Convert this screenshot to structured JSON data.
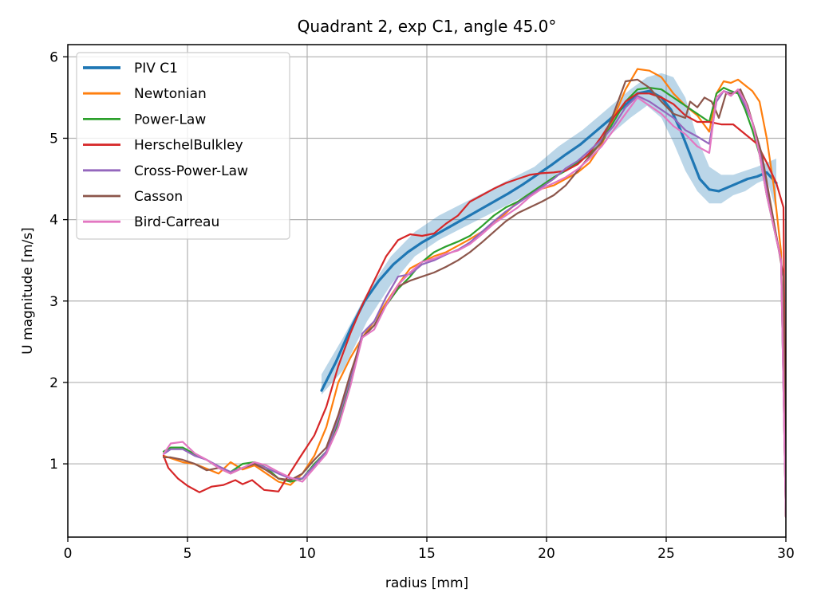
{
  "chart_data": {
    "type": "line",
    "title": "Quadrant 2, exp C1, angle 45.0°",
    "xlabel": "radius [mm]",
    "ylabel": "U magnitude [m/s]",
    "xlim": [
      0,
      30
    ],
    "ylim": [
      0.1,
      6.15
    ],
    "xticks": [
      0,
      5,
      10,
      15,
      20,
      25,
      30
    ],
    "yticks": [
      1,
      2,
      3,
      4,
      5,
      6
    ],
    "grid": true,
    "legend_position": "top-left",
    "band": {
      "name": "PIV C1 uncertainty",
      "color": "#1f77b4",
      "x": [
        10.6,
        11.5,
        12.5,
        13.5,
        14.5,
        15.5,
        16.5,
        17.5,
        18.5,
        19.5,
        20.5,
        21.5,
        22.5,
        23.5,
        24.2,
        24.8,
        25.3,
        25.8,
        26.3,
        26.8,
        27.3,
        27.8,
        28.3,
        28.8,
        29.2,
        29.6
      ],
      "lower": [
        1.85,
        2.15,
        2.75,
        3.2,
        3.55,
        3.75,
        3.9,
        4.05,
        4.2,
        4.35,
        4.55,
        4.75,
        5.0,
        5.25,
        5.4,
        5.25,
        4.95,
        4.6,
        4.35,
        4.2,
        4.2,
        4.3,
        4.35,
        4.45,
        4.5,
        4.1
      ],
      "upper": [
        2.1,
        2.55,
        3.1,
        3.55,
        3.85,
        4.05,
        4.2,
        4.35,
        4.5,
        4.65,
        4.9,
        5.1,
        5.35,
        5.6,
        5.75,
        5.8,
        5.75,
        5.5,
        5.0,
        4.65,
        4.55,
        4.55,
        4.6,
        4.65,
        4.7,
        4.75
      ]
    },
    "series": [
      {
        "name": "PIV C1",
        "color": "#1f77b4",
        "width": 3.2,
        "x": [
          10.6,
          11.2,
          11.8,
          12.4,
          13.0,
          13.6,
          14.2,
          14.8,
          15.4,
          16.0,
          16.6,
          17.2,
          17.8,
          18.4,
          19.0,
          19.6,
          20.2,
          20.8,
          21.4,
          22.0,
          22.6,
          23.2,
          23.8,
          24.3,
          24.8,
          25.2,
          25.6,
          26.0,
          26.4,
          26.8,
          27.2,
          27.6,
          28.0,
          28.4,
          28.8,
          29.2,
          29.6
        ],
        "y": [
          1.9,
          2.25,
          2.65,
          3.0,
          3.25,
          3.45,
          3.6,
          3.72,
          3.82,
          3.92,
          4.02,
          4.12,
          4.22,
          4.32,
          4.43,
          4.55,
          4.67,
          4.8,
          4.92,
          5.07,
          5.22,
          5.38,
          5.55,
          5.58,
          5.5,
          5.35,
          5.1,
          4.8,
          4.5,
          4.37,
          4.35,
          4.4,
          4.45,
          4.5,
          4.53,
          4.58,
          4.45
        ]
      },
      {
        "name": "Newtonian",
        "color": "#ff7f0e",
        "width": 2.2,
        "x": [
          4.0,
          4.3,
          4.8,
          5.3,
          5.8,
          6.3,
          6.8,
          7.3,
          7.8,
          8.3,
          8.8,
          9.3,
          9.8,
          10.3,
          10.8,
          11.3,
          11.8,
          12.3,
          12.8,
          13.3,
          13.8,
          14.3,
          14.8,
          15.3,
          15.8,
          16.3,
          16.8,
          17.3,
          17.8,
          18.3,
          18.8,
          19.3,
          19.8,
          20.3,
          20.8,
          21.3,
          21.8,
          22.3,
          22.8,
          23.3,
          23.8,
          24.3,
          24.8,
          25.3,
          25.8,
          26.3,
          26.8,
          27.1,
          27.4,
          27.7,
          28.0,
          28.3,
          28.6,
          28.9,
          29.2,
          29.5,
          29.8,
          30.0
        ],
        "y": [
          1.1,
          1.07,
          1.02,
          1.0,
          0.94,
          0.88,
          1.02,
          0.93,
          0.98,
          0.88,
          0.78,
          0.74,
          0.88,
          1.1,
          1.45,
          2.0,
          2.3,
          2.55,
          2.75,
          2.98,
          3.2,
          3.4,
          3.48,
          3.55,
          3.6,
          3.68,
          3.76,
          3.85,
          3.95,
          4.08,
          4.22,
          4.32,
          4.38,
          4.42,
          4.5,
          4.58,
          4.7,
          4.92,
          5.25,
          5.6,
          5.85,
          5.83,
          5.75,
          5.55,
          5.4,
          5.28,
          5.08,
          5.55,
          5.7,
          5.68,
          5.72,
          5.65,
          5.58,
          5.45,
          5.0,
          4.4,
          3.6,
          0.35
        ]
      },
      {
        "name": "Power-Law",
        "color": "#2ca02c",
        "width": 2.2,
        "x": [
          4.0,
          4.3,
          4.8,
          5.3,
          5.8,
          6.3,
          6.8,
          7.3,
          7.8,
          8.3,
          8.8,
          9.3,
          9.8,
          10.3,
          10.8,
          11.3,
          11.8,
          12.3,
          12.8,
          13.3,
          13.8,
          14.3,
          14.8,
          15.3,
          15.8,
          16.3,
          16.8,
          17.3,
          17.8,
          18.3,
          18.8,
          19.3,
          19.8,
          20.3,
          20.8,
          21.3,
          21.8,
          22.3,
          22.8,
          23.3,
          23.8,
          24.3,
          24.8,
          25.3,
          25.8,
          26.3,
          26.8,
          27.1,
          27.4,
          27.7,
          28.0,
          28.3,
          28.6,
          28.9,
          29.2,
          29.5,
          29.8,
          30.0
        ],
        "y": [
          1.15,
          1.2,
          1.2,
          1.12,
          1.05,
          0.95,
          0.9,
          1.0,
          1.02,
          0.95,
          0.82,
          0.78,
          0.82,
          1.0,
          1.15,
          1.5,
          2.0,
          2.55,
          2.7,
          2.95,
          3.15,
          3.3,
          3.48,
          3.6,
          3.67,
          3.73,
          3.8,
          3.92,
          4.05,
          4.15,
          4.22,
          4.32,
          4.42,
          4.52,
          4.6,
          4.7,
          4.8,
          4.95,
          5.2,
          5.45,
          5.6,
          5.62,
          5.6,
          5.5,
          5.4,
          5.3,
          5.2,
          5.55,
          5.62,
          5.58,
          5.55,
          5.35,
          5.1,
          4.8,
          4.3,
          3.9,
          3.5,
          0.35
        ]
      },
      {
        "name": "HerschelBulkley",
        "color": "#d62728",
        "width": 2.2,
        "x": [
          4.0,
          4.2,
          4.6,
          5.0,
          5.5,
          6.0,
          6.5,
          7.0,
          7.3,
          7.7,
          8.2,
          8.8,
          9.2,
          9.7,
          10.3,
          10.8,
          11.3,
          11.8,
          12.3,
          12.8,
          13.3,
          13.8,
          14.3,
          14.8,
          15.3,
          15.8,
          16.3,
          16.8,
          17.3,
          17.8,
          18.3,
          18.8,
          19.3,
          19.8,
          20.3,
          20.8,
          21.3,
          21.8,
          22.3,
          22.8,
          23.3,
          23.8,
          24.3,
          24.8,
          25.3,
          25.8,
          26.3,
          26.8,
          27.3,
          27.8,
          28.3,
          28.8,
          29.2,
          29.6,
          29.9,
          30.0
        ],
        "y": [
          1.1,
          0.95,
          0.82,
          0.73,
          0.65,
          0.72,
          0.74,
          0.8,
          0.75,
          0.8,
          0.68,
          0.66,
          0.85,
          1.08,
          1.35,
          1.7,
          2.2,
          2.6,
          2.95,
          3.25,
          3.55,
          3.75,
          3.82,
          3.8,
          3.83,
          3.95,
          4.05,
          4.22,
          4.3,
          4.38,
          4.45,
          4.5,
          4.55,
          4.57,
          4.58,
          4.6,
          4.68,
          4.82,
          5.02,
          5.25,
          5.45,
          5.55,
          5.55,
          5.5,
          5.42,
          5.28,
          5.2,
          5.2,
          5.17,
          5.17,
          5.05,
          4.93,
          4.7,
          4.45,
          4.15,
          0.35
        ]
      },
      {
        "name": "Cross-Power-Law",
        "color": "#9467bd",
        "width": 2.2,
        "x": [
          4.0,
          4.3,
          4.8,
          5.3,
          5.8,
          6.3,
          6.8,
          7.3,
          7.8,
          8.3,
          8.8,
          9.3,
          9.8,
          10.3,
          10.8,
          11.3,
          11.8,
          12.3,
          12.8,
          13.3,
          13.8,
          14.3,
          14.8,
          15.3,
          15.8,
          16.3,
          16.8,
          17.3,
          17.8,
          18.3,
          18.8,
          19.3,
          19.8,
          20.3,
          20.8,
          21.3,
          21.8,
          22.3,
          22.8,
          23.3,
          23.8,
          24.3,
          24.8,
          25.3,
          25.8,
          26.3,
          26.8,
          27.1,
          27.4,
          27.7,
          28.0,
          28.3,
          28.6,
          28.9,
          29.2,
          29.5,
          29.8,
          30.0
        ],
        "y": [
          1.12,
          1.18,
          1.18,
          1.1,
          1.05,
          0.97,
          0.9,
          0.95,
          1.0,
          0.95,
          0.88,
          0.82,
          0.82,
          0.98,
          1.15,
          1.55,
          2.05,
          2.6,
          2.75,
          3.05,
          3.3,
          3.33,
          3.45,
          3.5,
          3.57,
          3.63,
          3.72,
          3.85,
          3.98,
          4.1,
          4.2,
          4.3,
          4.4,
          4.5,
          4.63,
          4.72,
          4.85,
          4.98,
          5.15,
          5.38,
          5.52,
          5.45,
          5.35,
          5.25,
          5.1,
          5.02,
          4.93,
          5.45,
          5.58,
          5.55,
          5.58,
          5.4,
          5.2,
          4.9,
          4.4,
          3.95,
          3.5,
          0.35
        ]
      },
      {
        "name": "Casson",
        "color": "#8c564b",
        "width": 2.2,
        "x": [
          4.0,
          4.3,
          4.8,
          5.3,
          5.8,
          6.3,
          6.8,
          7.3,
          7.8,
          8.3,
          8.8,
          9.3,
          9.8,
          10.3,
          10.8,
          11.3,
          11.8,
          12.3,
          12.8,
          13.3,
          13.8,
          14.3,
          14.8,
          15.3,
          15.8,
          16.3,
          16.8,
          17.3,
          17.8,
          18.3,
          18.8,
          19.3,
          19.8,
          20.3,
          20.8,
          21.3,
          21.8,
          22.3,
          22.8,
          23.3,
          23.8,
          24.3,
          24.8,
          25.3,
          25.8,
          26.0,
          26.3,
          26.6,
          26.9,
          27.2,
          27.5,
          27.8,
          28.1,
          28.4,
          28.7,
          29.0,
          29.3,
          29.6,
          29.9,
          30.0
        ],
        "y": [
          1.08,
          1.08,
          1.05,
          1.0,
          0.92,
          0.95,
          0.88,
          0.95,
          1.0,
          0.92,
          0.82,
          0.8,
          0.88,
          1.05,
          1.2,
          1.6,
          2.1,
          2.55,
          2.7,
          2.95,
          3.18,
          3.25,
          3.3,
          3.35,
          3.42,
          3.5,
          3.6,
          3.72,
          3.85,
          3.98,
          4.08,
          4.15,
          4.22,
          4.3,
          4.42,
          4.6,
          4.78,
          4.95,
          5.3,
          5.7,
          5.72,
          5.62,
          5.45,
          5.3,
          5.25,
          5.45,
          5.38,
          5.5,
          5.45,
          5.25,
          5.55,
          5.55,
          5.6,
          5.4,
          5.1,
          4.8,
          4.3,
          3.8,
          3.3,
          0.35
        ]
      },
      {
        "name": "Bird-Carreau",
        "color": "#e377c2",
        "width": 2.2,
        "x": [
          4.0,
          4.3,
          4.8,
          5.3,
          5.8,
          6.3,
          6.8,
          7.3,
          7.8,
          8.3,
          8.8,
          9.3,
          9.8,
          10.3,
          10.8,
          11.3,
          11.8,
          12.3,
          12.8,
          13.3,
          13.8,
          14.3,
          14.8,
          15.3,
          15.8,
          16.3,
          16.8,
          17.3,
          17.8,
          18.3,
          18.8,
          19.3,
          19.8,
          20.3,
          20.8,
          21.3,
          21.8,
          22.3,
          22.8,
          23.3,
          23.8,
          24.3,
          24.8,
          25.3,
          25.8,
          26.3,
          26.8,
          27.1,
          27.4,
          27.7,
          28.0,
          28.3,
          28.6,
          28.9,
          29.2,
          29.5,
          29.8,
          30.0
        ],
        "y": [
          1.12,
          1.25,
          1.27,
          1.13,
          1.05,
          0.95,
          0.88,
          0.95,
          1.02,
          0.98,
          0.9,
          0.83,
          0.78,
          0.95,
          1.12,
          1.45,
          1.95,
          2.55,
          2.65,
          2.95,
          3.2,
          3.35,
          3.48,
          3.52,
          3.58,
          3.62,
          3.7,
          3.82,
          3.95,
          4.05,
          4.15,
          4.28,
          4.38,
          4.45,
          4.52,
          4.62,
          4.75,
          4.9,
          5.1,
          5.3,
          5.5,
          5.4,
          5.3,
          5.15,
          5.05,
          4.9,
          4.82,
          5.5,
          5.58,
          5.52,
          5.6,
          5.45,
          5.2,
          4.8,
          4.3,
          3.9,
          3.5,
          0.35
        ]
      }
    ]
  }
}
